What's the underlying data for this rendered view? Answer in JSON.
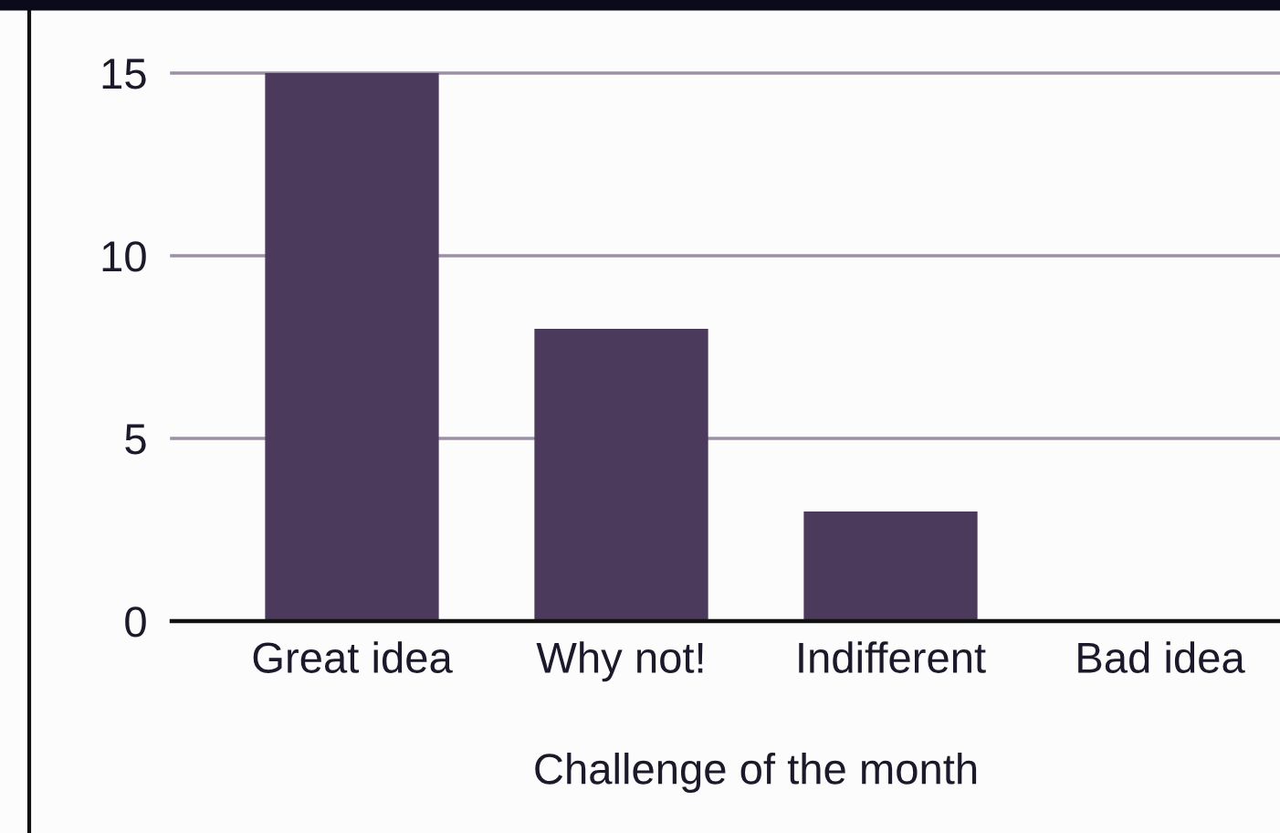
{
  "chart_data": {
    "type": "bar",
    "xlabel": "Challenge of the month",
    "categories": [
      "Great idea",
      "Why not!",
      "Indifferent",
      "Bad idea"
    ],
    "values": [
      15,
      8,
      3,
      0
    ],
    "color": "#4b3a5c",
    "ylim": [
      0,
      15
    ],
    "yticks": [
      0,
      5,
      10,
      15
    ],
    "grid": "y"
  }
}
